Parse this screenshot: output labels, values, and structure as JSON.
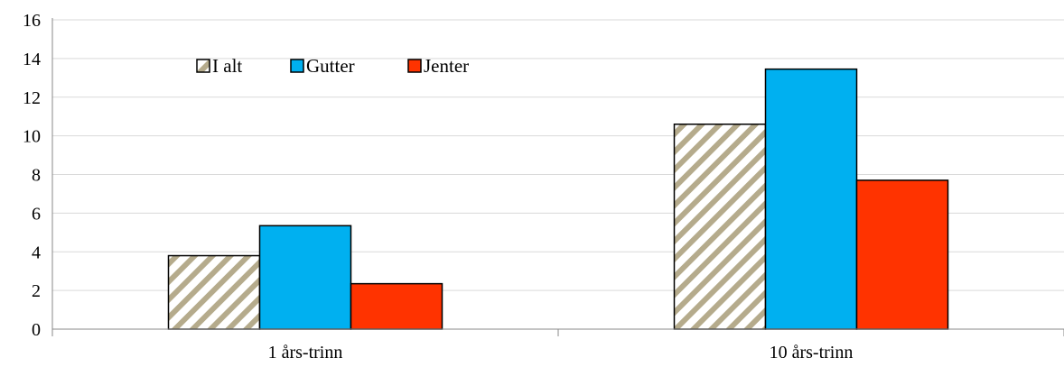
{
  "chart_data": {
    "type": "bar",
    "categories": [
      "1 års-trinn",
      "10 års-trinn"
    ],
    "series": [
      {
        "name": "I alt",
        "values": [
          3.8,
          10.6
        ],
        "color": "#b5ab8c",
        "pattern": "diagonal-stripes"
      },
      {
        "name": "Gutter",
        "values": [
          5.35,
          13.45
        ],
        "color": "#00b0f0"
      },
      {
        "name": "Jenter",
        "values": [
          2.35,
          7.7
        ],
        "color": "#ff3300"
      }
    ],
    "ylim": [
      0,
      16
    ],
    "yticks": [
      "0",
      "2",
      "4",
      "6",
      "8",
      "10",
      "12",
      "14",
      "16"
    ],
    "grid": true,
    "legend_position": "top-left"
  }
}
